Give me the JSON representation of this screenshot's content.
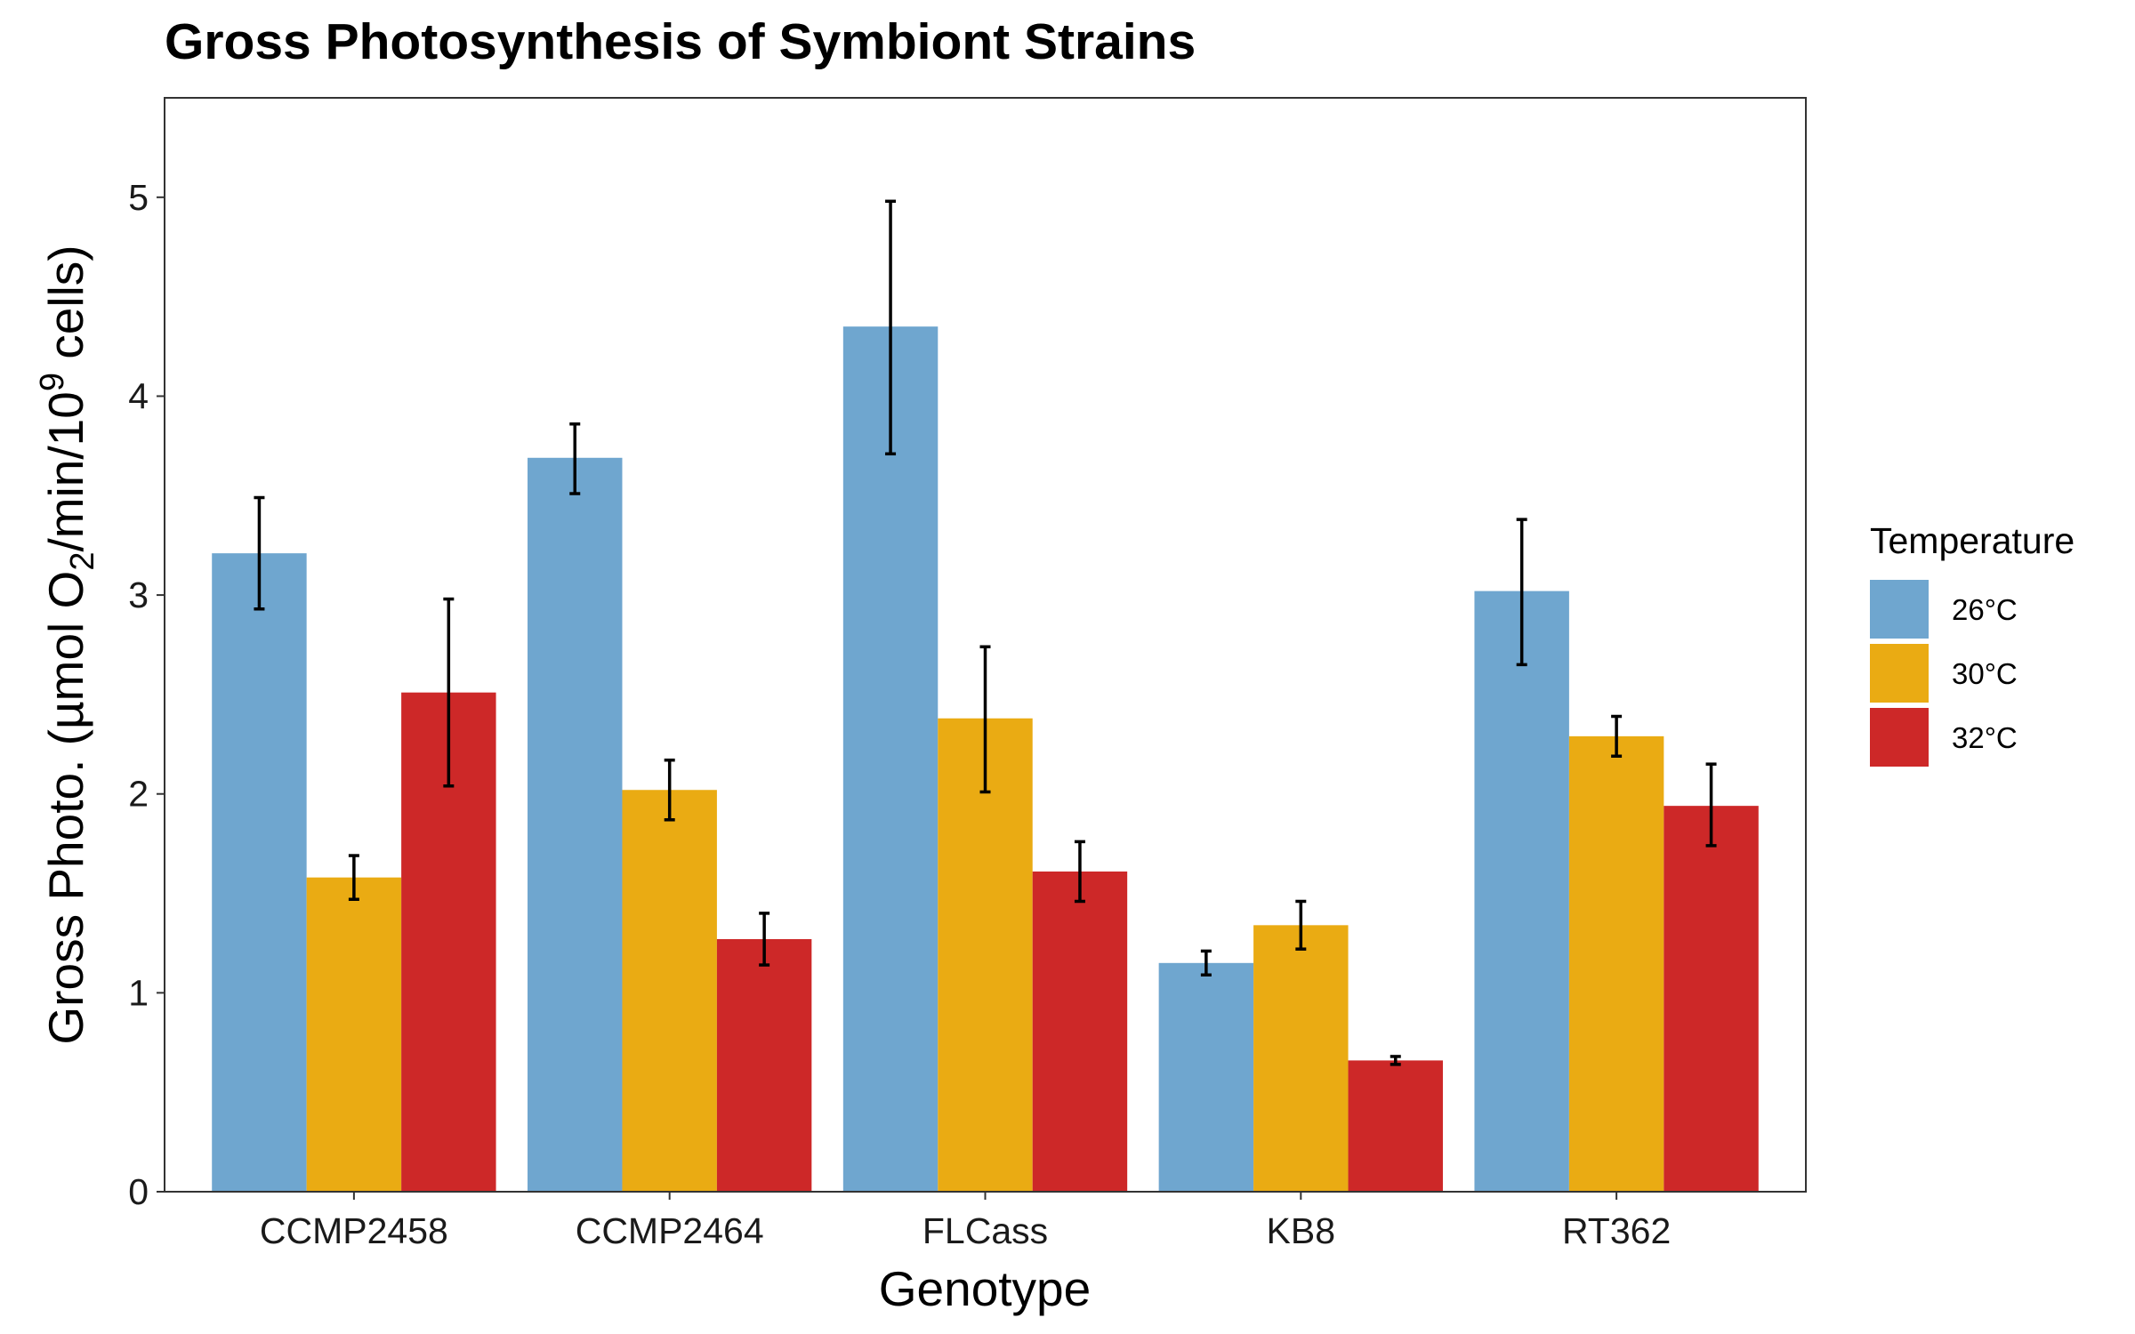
{
  "chart_data": {
    "type": "bar",
    "title": "Gross Photosynthesis of Symbiont Strains",
    "xlabel": "Genotype",
    "ylabel": {
      "prefix": "Gross Photo. (µmol O",
      "sub": "2",
      "mid": "/min/10",
      "sup": "9",
      "suffix": " cells)"
    },
    "ylim": [
      0,
      5.5
    ],
    "yticks": [
      "0",
      "1",
      "2",
      "3",
      "4",
      "5"
    ],
    "categories": [
      "CCMP2458",
      "CCMP2464",
      "FLCass",
      "KB8",
      "RT362"
    ],
    "legend": {
      "title": "Temperature",
      "position": "right"
    },
    "grid": false,
    "series": [
      {
        "name": "26°C",
        "color": "#6fa6cf",
        "values": [
          3.21,
          3.69,
          4.35,
          1.15,
          3.02
        ],
        "err_low": [
          2.93,
          3.51,
          3.71,
          1.09,
          2.65
        ],
        "err_high": [
          3.49,
          3.86,
          4.98,
          1.21,
          3.38
        ]
      },
      {
        "name": "30°C",
        "color": "#eaab13",
        "values": [
          1.58,
          2.02,
          2.38,
          1.34,
          2.29
        ],
        "err_low": [
          1.47,
          1.87,
          2.01,
          1.22,
          2.19
        ],
        "err_high": [
          1.69,
          2.17,
          2.74,
          1.46,
          2.39
        ]
      },
      {
        "name": "32°C",
        "color": "#cd2828",
        "values": [
          2.51,
          1.27,
          1.61,
          0.66,
          1.94
        ],
        "err_low": [
          2.04,
          1.14,
          1.46,
          0.64,
          1.74
        ],
        "err_high": [
          2.98,
          1.4,
          1.76,
          0.68,
          2.15
        ]
      }
    ]
  }
}
